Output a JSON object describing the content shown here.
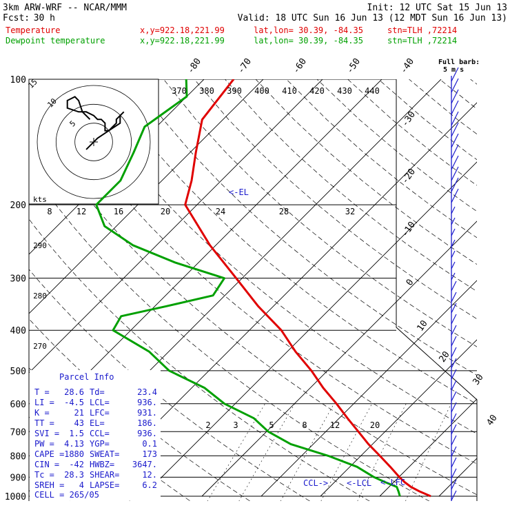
{
  "header": {
    "model": "3km ARW-WRF -- NCAR/MMM",
    "init": "Init: 12 UTC Sat 15 Jun 13",
    "fcst_label": "Fcst:",
    "fcst_value": "30 h",
    "valid": "Valid: 18 UTC Sun 16 Jun 13 (12 MDT Sun 16 Jun 13)"
  },
  "legend": [
    {
      "name": "Temperature",
      "coords": "x,y=922.18,221.99",
      "latlon": "lat,lon= 30.39, -84.35",
      "stn": "stn=TLH ,72214",
      "color": "#e00000"
    },
    {
      "name": "Dewpoint temperature",
      "coords": "x,y=922.18,221.99",
      "latlon": "lat,lon= 30.39, -84.35",
      "stn": "stn=TLH ,72214",
      "color": "#00a000"
    }
  ],
  "barb_label": {
    "line1": "Full barb:",
    "line2": "5 m s"
  },
  "level_labels": {
    "el": "EL",
    "lcl": "LCL",
    "lfc": "LFC",
    "ccl": "CCL"
  },
  "parcel_info": {
    "title": "Parcel Info",
    "rows": [
      [
        "T",
        "28.6",
        "Td",
        "23.4"
      ],
      [
        "LI",
        "-4.5",
        "LCL",
        "936."
      ],
      [
        "K",
        "21",
        "LFC",
        "931."
      ],
      [
        "TT",
        "43",
        "EL",
        "186."
      ],
      [
        "SVI",
        "1.5",
        "CCL",
        "936."
      ],
      [
        "PW",
        "4.13",
        "YGP",
        "0.1"
      ],
      [
        "CAPE",
        "1880",
        "SWEAT",
        "173"
      ],
      [
        "CIN",
        "-42",
        "HWBZ",
        "3647."
      ],
      [
        "Tc",
        "28.3",
        "SHEAR",
        "12."
      ],
      [
        "SREH",
        "4",
        "LAPSE",
        "6.2"
      ]
    ],
    "cell": "CELL = 265/05"
  },
  "hodograph": {
    "unit": "kts",
    "ring_labels": [
      "5",
      "10",
      "15"
    ]
  },
  "chart_data": {
    "type": "line",
    "title": "",
    "ylabel": "",
    "pressure_labels": [
      "100",
      "200",
      "300",
      "400",
      "500",
      "600",
      "700",
      "800",
      "900",
      "1000"
    ],
    "pressure_levels": [
      100,
      200,
      300,
      400,
      500,
      600,
      700,
      800,
      900,
      1000
    ],
    "isotherm_labels": [
      "-80",
      "-70",
      "-60",
      "-50",
      "-40",
      "-30",
      "-20",
      "-10",
      "0",
      "10",
      "20",
      "30",
      "40"
    ],
    "theta_labels_top": [
      "370",
      "380",
      "390",
      "400",
      "410",
      "420",
      "430",
      "440"
    ],
    "theta_labels_side": [
      "290",
      "280",
      "270"
    ],
    "mixing_ratio_labels_upper": [
      "8",
      "12",
      "16",
      "20",
      "24",
      "28",
      "32"
    ],
    "mixing_ratio_labels_lower": [
      "2",
      "3",
      "5",
      "8",
      "12",
      "20"
    ],
    "series": [
      {
        "name": "Temperature",
        "color": "#e00000",
        "p": [
          1000,
          975,
          950,
          925,
          900,
          850,
          800,
          750,
          700,
          650,
          600,
          550,
          500,
          450,
          400,
          350,
          300,
          250,
          200,
          175,
          150,
          125,
          100
        ],
        "t": [
          28.6,
          26.0,
          23.7,
          21.8,
          20.1,
          16.8,
          13.2,
          9.3,
          5.5,
          1.4,
          -2.9,
          -7.8,
          -12.7,
          -18.6,
          -24.6,
          -32.6,
          -41.0,
          -51.0,
          -62.0,
          -65.0,
          -69.0,
          -73.5,
          -75.0
        ]
      },
      {
        "name": "Dewpoint temperature",
        "color": "#00a000",
        "p": [
          1000,
          975,
          950,
          925,
          900,
          850,
          800,
          750,
          700,
          650,
          600,
          550,
          500,
          450,
          400,
          370,
          350,
          330,
          300,
          275,
          250,
          225,
          200,
          175,
          150,
          130,
          110,
          100
        ],
        "t": [
          23.4,
          22.4,
          21.3,
          18.5,
          15.8,
          11.2,
          4.5,
          -3.8,
          -9.7,
          -14.4,
          -21.8,
          -27.8,
          -36.7,
          -43.3,
          -53.0,
          -54.0,
          -48.0,
          -42.0,
          -43.0,
          -54.0,
          -64.0,
          -72.0,
          -77.0,
          -77.0,
          -79.5,
          -82.0,
          -80.0,
          -83.0
        ]
      }
    ],
    "hodograph_uv": [
      [
        -2,
        -2
      ],
      [
        1,
        1
      ],
      [
        4,
        3
      ],
      [
        7,
        5
      ],
      [
        7,
        7
      ],
      [
        8,
        8
      ],
      [
        6,
        6
      ],
      [
        6,
        5
      ],
      [
        5,
        4
      ],
      [
        4,
        3
      ],
      [
        3,
        3
      ],
      [
        3,
        5
      ],
      [
        2,
        6
      ],
      [
        1,
        6
      ],
      [
        0,
        7
      ],
      [
        -2,
        8
      ],
      [
        -4,
        8
      ],
      [
        -7,
        9
      ],
      [
        -7,
        11
      ],
      [
        -5,
        12
      ],
      [
        -4,
        11
      ],
      [
        -3,
        8
      ],
      [
        -1,
        6
      ]
    ],
    "hodograph_range_kts": 15
  }
}
